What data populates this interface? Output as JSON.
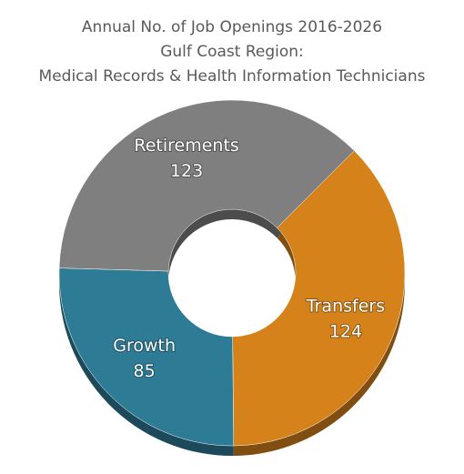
{
  "chart_data": {
    "type": "donut",
    "title": [
      "Annual No. of Job Openings 2016-2026",
      "Gulf Coast Region:",
      "Medical Records & Health Information Technicians"
    ],
    "categories": [
      "Transfers",
      "Growth",
      "Retirements"
    ],
    "values": [
      124,
      85,
      123
    ],
    "colors": [
      "#d5821a",
      "#2e7b96",
      "#7f7f7f"
    ]
  }
}
